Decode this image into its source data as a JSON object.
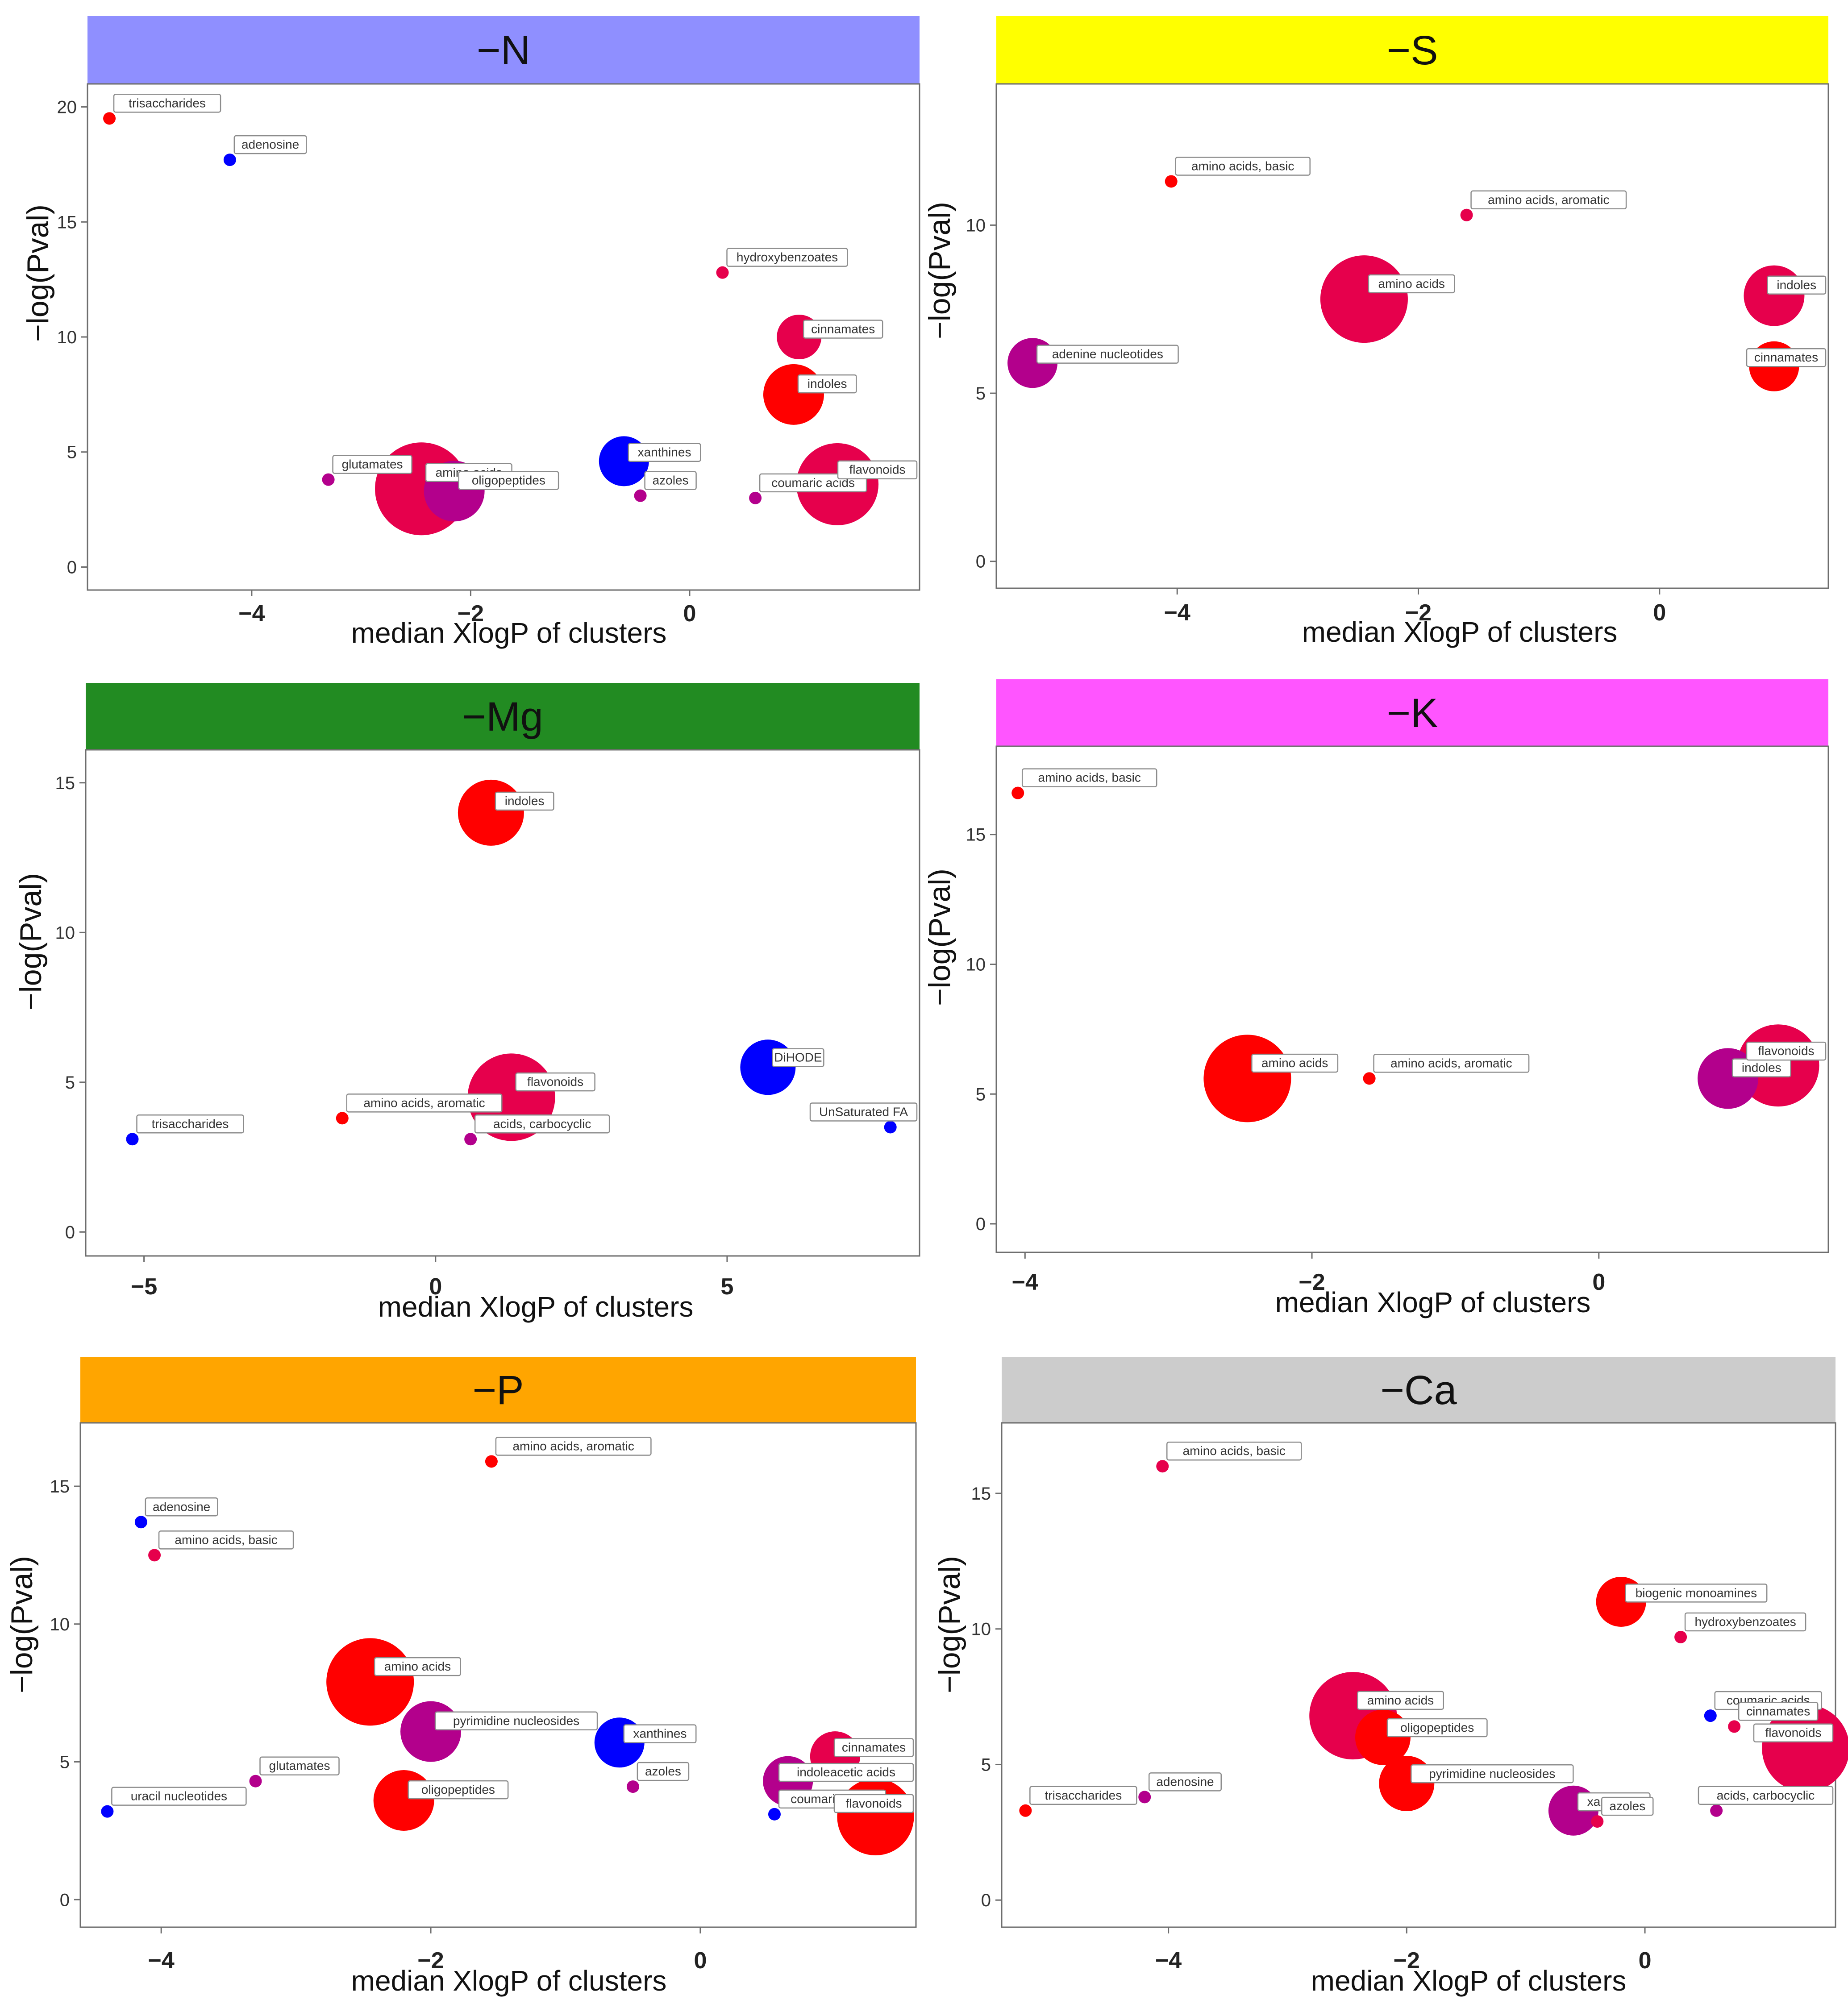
{
  "colors": {
    "red": "#ff0000",
    "crimson": "#e6004c",
    "magenta": "#b3008c",
    "blue": "#0000ff",
    "banner_N": "#8f8fff",
    "banner_S": "#ffff00",
    "banner_Mg": "#228b22",
    "banner_K": "#ff55ff",
    "banner_P": "#ffa500",
    "banner_Ca": "#cccccc"
  },
  "chart_data": [
    {
      "type": "scatter",
      "title": "−N",
      "xlabel": "median XlogP of clusters",
      "ylabel": "−log(Pval)",
      "xlim": [
        -5.5,
        2.1
      ],
      "ylim": [
        -1,
        21
      ],
      "x_ticks": [
        "−4",
        "−2",
        "0"
      ],
      "x_tick_values": [
        -4,
        -2,
        0
      ],
      "y_ticks": [
        "0",
        "5",
        "10",
        "15",
        "20"
      ],
      "y_tick_values": [
        0,
        5,
        10,
        15,
        20
      ],
      "points": [
        {
          "label": "trisaccharides",
          "x": -5.3,
          "y": 19.5,
          "size": 1,
          "color": "red"
        },
        {
          "label": "adenosine",
          "x": -4.2,
          "y": 17.7,
          "size": 1,
          "color": "blue"
        },
        {
          "label": "hydroxybenzoates",
          "x": 0.3,
          "y": 12.8,
          "size": 1,
          "color": "crimson"
        },
        {
          "label": "cinnamates",
          "x": 1.0,
          "y": 10.0,
          "size": 4,
          "color": "crimson"
        },
        {
          "label": "indoles",
          "x": 0.95,
          "y": 7.5,
          "size": 5.5,
          "color": "red"
        },
        {
          "label": "glutamates",
          "x": -3.3,
          "y": 3.8,
          "size": 1,
          "color": "magenta"
        },
        {
          "label": "amino acids",
          "x": -2.45,
          "y": 3.4,
          "size": 8.5,
          "color": "crimson"
        },
        {
          "label": "oligopeptides",
          "x": -2.15,
          "y": 3.3,
          "size": 5.5,
          "color": "magenta"
        },
        {
          "label": "xanthines",
          "x": -0.6,
          "y": 4.6,
          "size": 4.5,
          "color": "blue"
        },
        {
          "label": "azoles",
          "x": -0.45,
          "y": 3.1,
          "size": 1,
          "color": "magenta"
        },
        {
          "label": "coumaric acids",
          "x": 0.6,
          "y": 3.0,
          "size": 1,
          "color": "magenta"
        },
        {
          "label": "flavonoids",
          "x": 1.35,
          "y": 3.6,
          "size": 7.5,
          "color": "crimson"
        }
      ]
    },
    {
      "type": "scatter",
      "title": "−S",
      "xlabel": "median XlogP of clusters",
      "ylabel": "−log(Pval)",
      "xlim": [
        -5.5,
        1.4
      ],
      "ylim": [
        -0.8,
        14.2
      ],
      "x_ticks": [
        "−4",
        "−2",
        "0"
      ],
      "x_tick_values": [
        -4,
        -2,
        0
      ],
      "y_ticks": [
        "0",
        "5",
        "10"
      ],
      "y_tick_values": [
        0,
        5,
        10
      ],
      "points": [
        {
          "label": "amino acids, basic",
          "x": -4.05,
          "y": 11.3,
          "size": 1,
          "color": "red"
        },
        {
          "label": "amino acids, aromatic",
          "x": -1.6,
          "y": 10.3,
          "size": 1,
          "color": "crimson"
        },
        {
          "label": "amino acids",
          "x": -2.45,
          "y": 7.8,
          "size": 8,
          "color": "crimson"
        },
        {
          "label": "adenine nucleotides",
          "x": -5.2,
          "y": 5.9,
          "size": 4.5,
          "color": "magenta"
        },
        {
          "label": "indoles",
          "x": 0.95,
          "y": 7.9,
          "size": 5.5,
          "color": "crimson"
        },
        {
          "label": "cinnamates",
          "x": 0.95,
          "y": 5.8,
          "size": 4.5,
          "color": "red"
        }
      ]
    },
    {
      "type": "scatter",
      "title": "−Mg",
      "xlabel": "median XlogP of clusters",
      "ylabel": "−log(Pval)",
      "xlim": [
        -6,
        8.3
      ],
      "ylim": [
        -0.8,
        16.1
      ],
      "x_ticks": [
        "−5",
        "0",
        "5"
      ],
      "x_tick_values": [
        -5,
        0,
        5
      ],
      "y_ticks": [
        "0",
        "5",
        "10",
        "15"
      ],
      "y_tick_values": [
        0,
        5,
        10,
        15
      ],
      "points": [
        {
          "label": "indoles",
          "x": 0.95,
          "y": 14.0,
          "size": 6,
          "color": "red"
        },
        {
          "label": "DiHODE",
          "x": 5.7,
          "y": 5.5,
          "size": 5,
          "color": "blue"
        },
        {
          "label": "flavonoids",
          "x": 1.3,
          "y": 4.5,
          "size": 8,
          "color": "crimson"
        },
        {
          "label": "amino acids, aromatic",
          "x": -1.6,
          "y": 3.8,
          "size": 1,
          "color": "red"
        },
        {
          "label": "acids, carbocyclic",
          "x": 0.6,
          "y": 3.1,
          "size": 1,
          "color": "magenta"
        },
        {
          "label": "trisaccharides",
          "x": -5.2,
          "y": 3.1,
          "size": 1,
          "color": "blue"
        },
        {
          "label": "UnSaturated FA",
          "x": 7.8,
          "y": 3.5,
          "size": 1,
          "color": "blue"
        }
      ]
    },
    {
      "type": "scatter",
      "title": "−K",
      "xlabel": "median XlogP of clusters",
      "ylabel": "−log(Pval)",
      "xlim": [
        -4.2,
        1.6
      ],
      "ylim": [
        -1.1,
        18.4
      ],
      "x_ticks": [
        "−4",
        "−2",
        "0"
      ],
      "x_tick_values": [
        -4,
        -2,
        0
      ],
      "y_ticks": [
        "0",
        "5",
        "10",
        "15"
      ],
      "y_tick_values": [
        0,
        5,
        10,
        15
      ],
      "points": [
        {
          "label": "amino acids, basic",
          "x": -4.05,
          "y": 16.6,
          "size": 1,
          "color": "red"
        },
        {
          "label": "amino acids",
          "x": -2.45,
          "y": 5.6,
          "size": 8,
          "color": "red"
        },
        {
          "label": "amino acids, aromatic",
          "x": -1.6,
          "y": 5.6,
          "size": 1,
          "color": "red"
        },
        {
          "label": "indoles",
          "x": 0.9,
          "y": 5.6,
          "size": 5.5,
          "color": "magenta"
        },
        {
          "label": "flavonoids",
          "x": 1.25,
          "y": 6.1,
          "size": 7.5,
          "color": "crimson"
        }
      ]
    },
    {
      "type": "scatter",
      "title": "−P",
      "xlabel": "median XlogP of clusters",
      "ylabel": "−log(Pval)",
      "xlim": [
        -4.6,
        1.6
      ],
      "ylim": [
        -1,
        17.3
      ],
      "x_ticks": [
        "−4",
        "−2",
        "0"
      ],
      "x_tick_values": [
        -4,
        -2,
        0
      ],
      "y_ticks": [
        "0",
        "5",
        "10",
        "15"
      ],
      "y_tick_values": [
        0,
        5,
        10,
        15
      ],
      "points": [
        {
          "label": "amino acids, aromatic",
          "x": -1.55,
          "y": 15.9,
          "size": 1,
          "color": "red"
        },
        {
          "label": "adenosine",
          "x": -4.15,
          "y": 13.7,
          "size": 1,
          "color": "blue"
        },
        {
          "label": "amino acids, basic",
          "x": -4.05,
          "y": 12.5,
          "size": 1,
          "color": "crimson"
        },
        {
          "label": "amino acids",
          "x": -2.45,
          "y": 7.9,
          "size": 8,
          "color": "red"
        },
        {
          "label": "pyrimidine nucleosides",
          "x": -2.0,
          "y": 6.1,
          "size": 5.5,
          "color": "magenta"
        },
        {
          "label": "xanthines",
          "x": -0.6,
          "y": 5.7,
          "size": 4.5,
          "color": "blue"
        },
        {
          "label": "glutamates",
          "x": -3.3,
          "y": 4.3,
          "size": 1,
          "color": "magenta"
        },
        {
          "label": "oligopeptides",
          "x": -2.2,
          "y": 3.6,
          "size": 5.5,
          "color": "red"
        },
        {
          "label": "azoles",
          "x": -0.5,
          "y": 4.1,
          "size": 1,
          "color": "magenta"
        },
        {
          "label": "uracil nucleotides",
          "x": -4.4,
          "y": 3.2,
          "size": 1,
          "color": "blue"
        },
        {
          "label": "indoleacetic acids",
          "x": 0.65,
          "y": 4.3,
          "size": 4.5,
          "color": "magenta"
        },
        {
          "label": "cinnamates",
          "x": 1.0,
          "y": 5.2,
          "size": 4.5,
          "color": "crimson"
        },
        {
          "label": "coumaric acids",
          "x": 0.55,
          "y": 3.1,
          "size": 1,
          "color": "blue"
        },
        {
          "label": "flavonoids",
          "x": 1.3,
          "y": 3.0,
          "size": 7,
          "color": "red"
        }
      ]
    },
    {
      "type": "scatter",
      "title": "−Ca",
      "xlabel": "median XlogP of clusters",
      "ylabel": "−log(Pval)",
      "xlim": [
        -5.4,
        1.6
      ],
      "ylim": [
        -1,
        17.6
      ],
      "x_ticks": [
        "−4",
        "−2",
        "0"
      ],
      "x_tick_values": [
        -4,
        -2,
        0
      ],
      "y_ticks": [
        "0",
        "5",
        "10",
        "15"
      ],
      "y_tick_values": [
        0,
        5,
        10,
        15
      ],
      "points": [
        {
          "label": "amino acids, basic",
          "x": -4.05,
          "y": 16.0,
          "size": 1,
          "color": "crimson"
        },
        {
          "label": "biogenic monoamines",
          "x": -0.2,
          "y": 11.0,
          "size": 4.5,
          "color": "red"
        },
        {
          "label": "hydroxybenzoates",
          "x": 0.3,
          "y": 9.7,
          "size": 1,
          "color": "crimson"
        },
        {
          "label": "coumaric acids",
          "x": 0.55,
          "y": 6.8,
          "size": 1,
          "color": "blue"
        },
        {
          "label": "cinnamates",
          "x": 0.75,
          "y": 6.4,
          "size": 1,
          "color": "crimson"
        },
        {
          "label": "flavonoids",
          "x": 1.35,
          "y": 5.6,
          "size": 8,
          "color": "crimson"
        },
        {
          "label": "amino acids",
          "x": -2.45,
          "y": 6.8,
          "size": 8,
          "color": "crimson"
        },
        {
          "label": "oligopeptides",
          "x": -2.2,
          "y": 6.0,
          "size": 5,
          "color": "red"
        },
        {
          "label": "pyrimidine nucleosides",
          "x": -2.0,
          "y": 4.3,
          "size": 5,
          "color": "red"
        },
        {
          "label": "adenosine",
          "x": -4.2,
          "y": 3.8,
          "size": 1,
          "color": "magenta"
        },
        {
          "label": "trisaccharides",
          "x": -5.2,
          "y": 3.3,
          "size": 1,
          "color": "red"
        },
        {
          "label": "xanthines",
          "x": -0.6,
          "y": 3.3,
          "size": 4.5,
          "color": "magenta"
        },
        {
          "label": "azoles",
          "x": -0.4,
          "y": 2.9,
          "size": 1,
          "color": "crimson"
        },
        {
          "label": "acids, carbocyclic",
          "x": 0.6,
          "y": 3.3,
          "size": 1,
          "color": "magenta"
        }
      ]
    }
  ]
}
